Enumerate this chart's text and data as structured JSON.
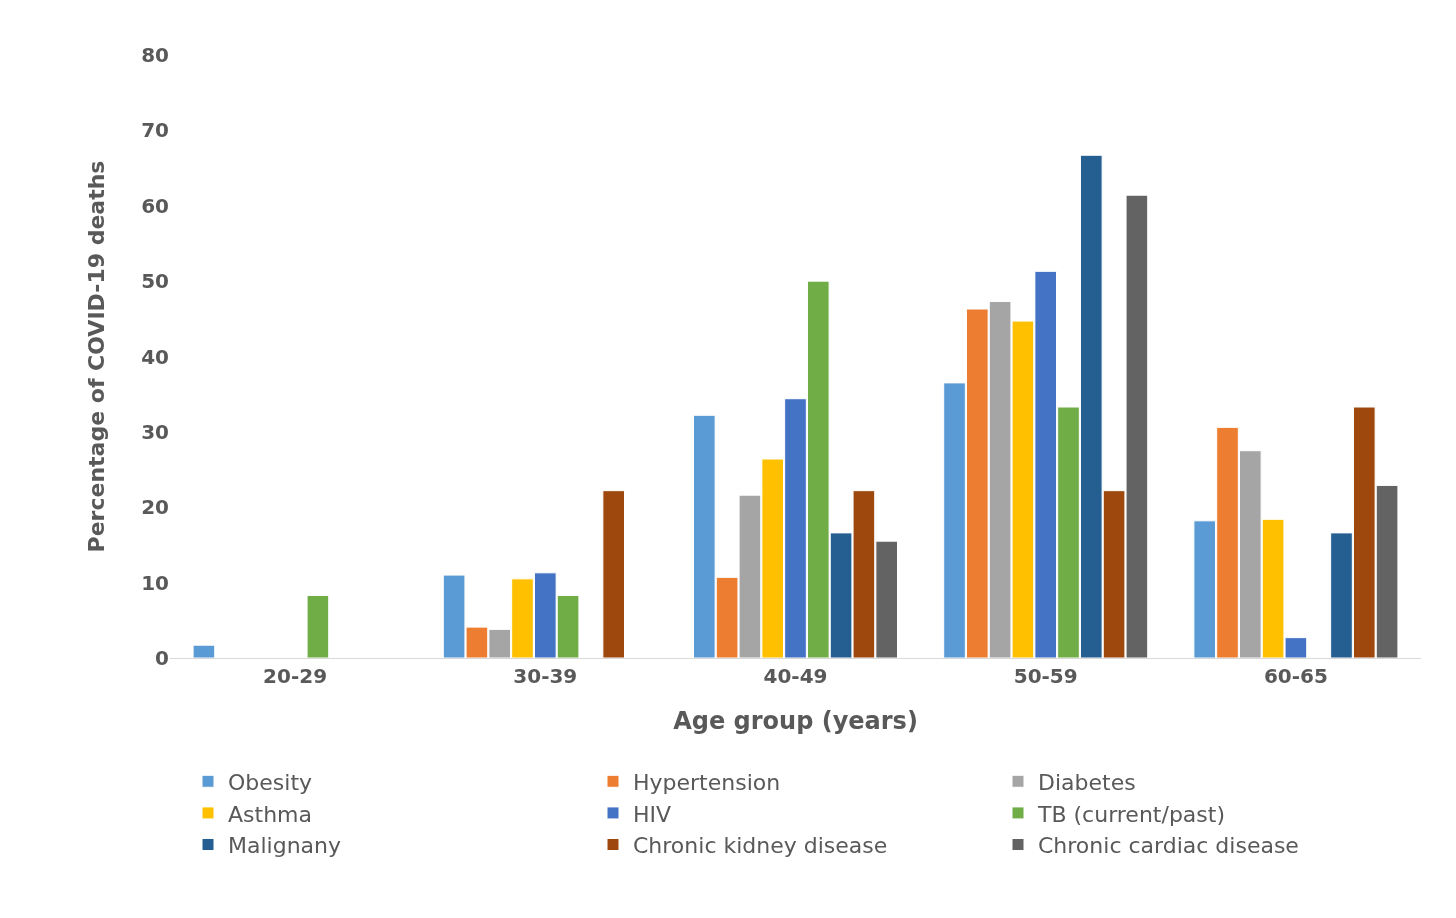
{
  "chart_data": {
    "type": "bar",
    "xlabel": "Age group (years)",
    "ylabel": "Percentage of COVID-19 deaths",
    "categories": [
      "20-29",
      "30-39",
      "40-49",
      "50-59",
      "60-65"
    ],
    "ylim": [
      0,
      80
    ],
    "yticks": [
      0,
      10,
      20,
      30,
      40,
      50,
      60,
      70,
      80
    ],
    "legend": "bottom",
    "series": [
      {
        "name": "Obesity",
        "color": "#5b9bd5",
        "values": [
          1.7,
          11.0,
          32.2,
          36.5,
          18.2
        ]
      },
      {
        "name": "Hypertension",
        "color": "#ed7d31",
        "values": [
          null,
          4.1,
          10.7,
          46.3,
          30.6
        ]
      },
      {
        "name": "Diabetes",
        "color": "#a5a5a5",
        "values": [
          null,
          3.8,
          21.6,
          47.3,
          27.5
        ]
      },
      {
        "name": "Asthma",
        "color": "#ffc000",
        "values": [
          null,
          10.5,
          26.4,
          44.7,
          18.4
        ]
      },
      {
        "name": "HIV",
        "color": "#4472c4",
        "values": [
          null,
          11.3,
          34.4,
          51.3,
          2.7
        ]
      },
      {
        "name": "TB (current/past)",
        "color": "#70ad47",
        "values": [
          8.3,
          8.3,
          50.0,
          33.3,
          null
        ]
      },
      {
        "name": "Malignany",
        "color": "#255e91",
        "values": [
          null,
          null,
          16.6,
          66.7,
          16.6
        ]
      },
      {
        "name": "Chronic kidney disease",
        "color": "#9e480e",
        "values": [
          null,
          22.2,
          22.2,
          22.2,
          33.3
        ]
      },
      {
        "name": "Chronic cardiac disease",
        "color": "#636363",
        "values": [
          null,
          null,
          15.5,
          61.4,
          22.9
        ]
      }
    ]
  }
}
